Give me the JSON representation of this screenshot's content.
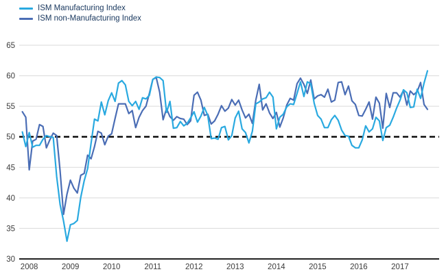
{
  "chart_data": {
    "type": "line",
    "title": "",
    "xlabel": "",
    "ylabel": "",
    "frequency": "monthly",
    "x_start": 2007.8333,
    "x_step": 0.0833333,
    "xlim": [
      2007.79,
      2017.95
    ],
    "ylim": [
      30,
      65
    ],
    "y_ticks": [
      30,
      35,
      40,
      45,
      50,
      55,
      60,
      65
    ],
    "x_ticks": [
      2008,
      2009,
      2010,
      2011,
      2012,
      2013,
      2014,
      2015,
      2016,
      2017
    ],
    "grid": "horizontal",
    "legend_position": "top-left",
    "reference_line": {
      "y": 50,
      "style": "dashed",
      "color": "#000000"
    },
    "colors": {
      "grid": "#d9d9d9",
      "axis": "#000000",
      "axis_text": "#3c3c3c",
      "legend_text": "#17365d"
    },
    "series": [
      {
        "name": "ISM Manufacturing Index",
        "color": "#29a9e0",
        "values": [
          50.8,
          48.4,
          50.7,
          48.3,
          48.6,
          48.6,
          49.6,
          50.2,
          50.0,
          49.9,
          43.5,
          38.9,
          36.2,
          32.9,
          35.6,
          35.8,
          36.3,
          40.1,
          42.8,
          44.8,
          48.9,
          52.9,
          52.6,
          55.7,
          53.6,
          55.9,
          57.2,
          55.8,
          58.8,
          59.2,
          58.5,
          55.8,
          55.1,
          55.8,
          54.5,
          56.4,
          56.2,
          56.8,
          59.4,
          59.8,
          59.7,
          59.2,
          54.0,
          55.8,
          51.4,
          51.5,
          52.5,
          51.8,
          52.2,
          53.1,
          54.1,
          52.4,
          53.4,
          54.8,
          53.5,
          49.7,
          49.8,
          49.6,
          51.5,
          51.7,
          49.5,
          50.2,
          53.1,
          54.2,
          51.3,
          50.7,
          49.0,
          50.9,
          55.4,
          55.7,
          56.2,
          56.4,
          57.3,
          56.5,
          51.3,
          53.2,
          53.7,
          54.9,
          55.4,
          55.3,
          57.1,
          59.0,
          56.6,
          59.0,
          58.7,
          55.5,
          53.5,
          52.9,
          51.5,
          51.5,
          52.8,
          53.5,
          52.7,
          51.1,
          50.2,
          50.1,
          48.6,
          48.2,
          48.2,
          49.5,
          51.8,
          50.8,
          51.3,
          53.2,
          52.6,
          49.4,
          51.5,
          51.9,
          53.2,
          54.7,
          56.0,
          57.7,
          57.2,
          54.8,
          54.9,
          57.8,
          56.3,
          58.8,
          60.8
        ]
      },
      {
        "name": "ISM non-Manufacturing Index",
        "color": "#4a6db5",
        "values": [
          54.1,
          53.2,
          44.6,
          49.3,
          49.6,
          52.0,
          51.7,
          48.2,
          49.5,
          50.6,
          50.2,
          44.4,
          37.3,
          40.6,
          42.9,
          41.6,
          40.8,
          43.7,
          44.0,
          47.0,
          46.4,
          48.4,
          50.9,
          50.6,
          48.7,
          50.1,
          50.5,
          53.0,
          55.4,
          55.4,
          55.4,
          53.8,
          54.3,
          51.5,
          53.2,
          54.3,
          55.0,
          57.1,
          59.4,
          59.7,
          57.3,
          52.8,
          54.6,
          53.3,
          52.7,
          53.3,
          53.0,
          52.9,
          52.0,
          52.6,
          56.8,
          57.3,
          56.0,
          53.5,
          53.7,
          52.1,
          52.6,
          53.7,
          55.1,
          54.2,
          54.7,
          56.1,
          55.2,
          56.0,
          54.4,
          53.1,
          53.7,
          52.2,
          56.0,
          58.6,
          54.4,
          55.4,
          53.9,
          53.0,
          54.0,
          51.6,
          53.1,
          55.2,
          56.3,
          56.0,
          58.7,
          59.6,
          58.6,
          57.1,
          59.3,
          56.2,
          56.7,
          56.9,
          56.5,
          57.8,
          55.7,
          56.0,
          58.9,
          59.0,
          56.9,
          58.3,
          55.9,
          55.3,
          53.5,
          53.4,
          54.5,
          55.7,
          52.9,
          56.5,
          55.5,
          51.4,
          57.1,
          54.8,
          57.2,
          57.2,
          56.5,
          57.6,
          55.2,
          57.5,
          56.9,
          57.4,
          58.9,
          55.3,
          54.5
        ]
      }
    ]
  }
}
